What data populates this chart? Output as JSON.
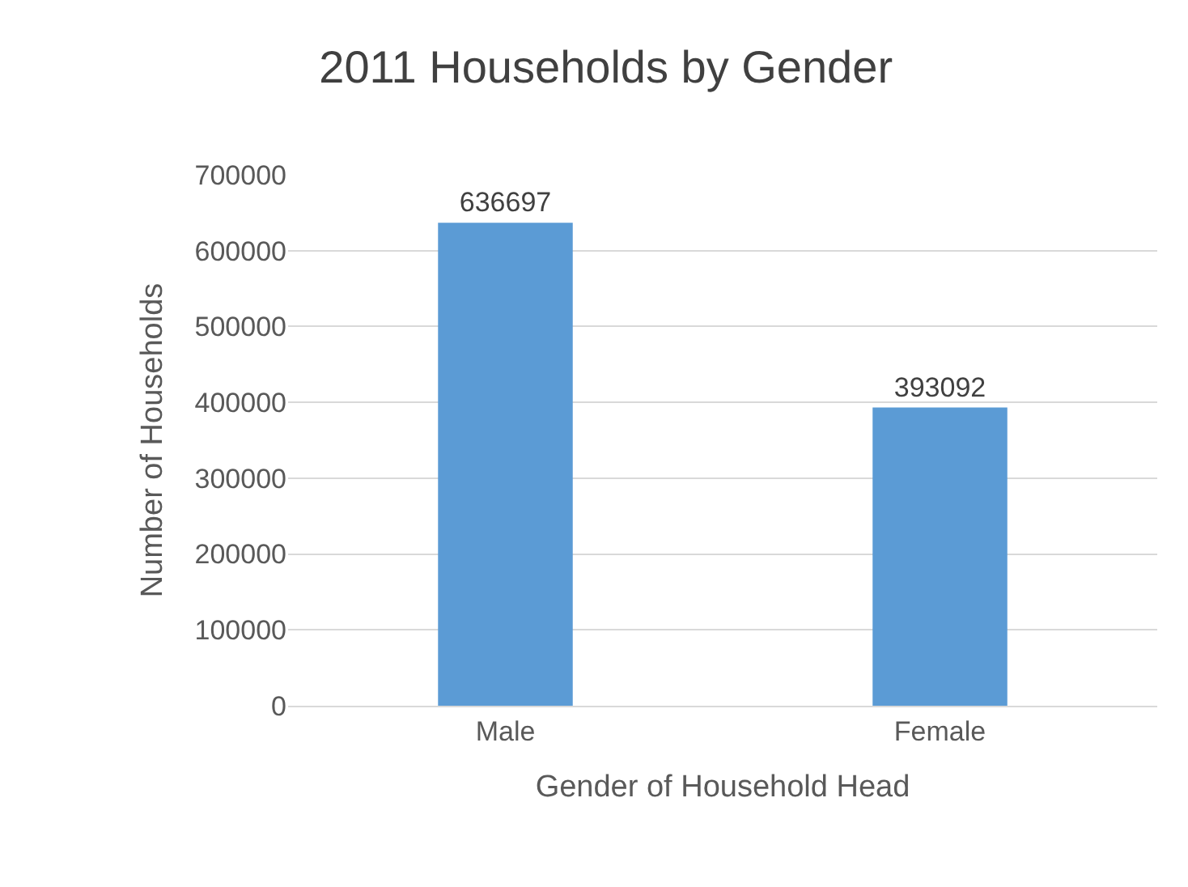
{
  "chart_data": {
    "type": "bar",
    "title": "2011 Households by Gender",
    "xlabel": "Gender of Household Head",
    "ylabel": "Number of Households",
    "categories": [
      "Male",
      "Female"
    ],
    "values": [
      636697,
      393092
    ],
    "color": "#5b9bd5",
    "ylim": [
      0,
      700000
    ],
    "yticks": [
      0,
      100000,
      200000,
      300000,
      400000,
      500000,
      600000,
      700000
    ],
    "grid": "y",
    "data_labels": true
  }
}
